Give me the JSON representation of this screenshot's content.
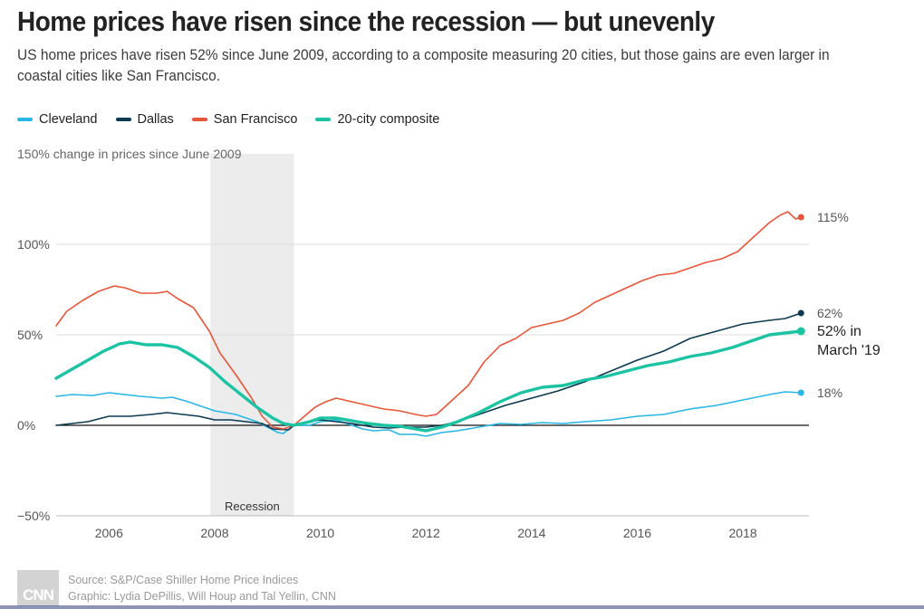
{
  "title": "Home prices have risen since the recession — but unevenly",
  "subtitle": "US home prices have risen 52% since June 2009, according to a composite measuring 20 cities, but those gains are even larger in coastal cities like San Francisco.",
  "legend": [
    {
      "label": "Cleveland",
      "color": "#28b6e6"
    },
    {
      "label": "Dallas",
      "color": "#0b3a52"
    },
    {
      "label": "San Francisco",
      "color": "#e8563a"
    },
    {
      "label": "20-city composite",
      "color": "#1cc3a3"
    }
  ],
  "footer": {
    "logo": "CNN",
    "source": "Source: S&P/Case Shiller Home Price Indices",
    "credit": "Graphic: Lydia DePillis, Will Houp and Tal Yellin, CNN"
  },
  "chart_data": {
    "type": "line",
    "ylabel": "150% change in prices since June 2009",
    "ylim": [
      -50,
      150
    ],
    "xlim": [
      2005.0,
      2019.25
    ],
    "yticks": [
      {
        "value": 100,
        "label": "100%"
      },
      {
        "value": 50,
        "label": "50%"
      },
      {
        "value": 0,
        "label": "0%"
      },
      {
        "value": -50,
        "label": "−50%"
      }
    ],
    "xticks": [
      {
        "value": 2006,
        "label": "2006"
      },
      {
        "value": 2008,
        "label": "2008"
      },
      {
        "value": 2010,
        "label": "2010"
      },
      {
        "value": 2012,
        "label": "2012"
      },
      {
        "value": 2014,
        "label": "2014"
      },
      {
        "value": 2016,
        "label": "2016"
      },
      {
        "value": 2018,
        "label": "2018"
      }
    ],
    "recession": {
      "start": 2007.92,
      "end": 2009.5,
      "label": "Recession"
    },
    "series": [
      {
        "name": "Cleveland",
        "color": "#28b6e6",
        "end_label": "18%",
        "width": 1.6,
        "points": [
          [
            2005.0,
            16
          ],
          [
            2005.3,
            17
          ],
          [
            2005.7,
            16.5
          ],
          [
            2006.0,
            18
          ],
          [
            2006.3,
            17
          ],
          [
            2006.6,
            16
          ],
          [
            2007.0,
            15
          ],
          [
            2007.2,
            15.5
          ],
          [
            2007.5,
            13
          ],
          [
            2007.8,
            10
          ],
          [
            2008.0,
            8
          ],
          [
            2008.2,
            7
          ],
          [
            2008.4,
            6
          ],
          [
            2008.6,
            4
          ],
          [
            2008.8,
            2
          ],
          [
            2009.0,
            -1
          ],
          [
            2009.2,
            -4
          ],
          [
            2009.3,
            -4.5
          ],
          [
            2009.5,
            0
          ],
          [
            2009.8,
            0
          ],
          [
            2010.0,
            2
          ],
          [
            2010.3,
            3
          ],
          [
            2010.5,
            1
          ],
          [
            2010.8,
            -2
          ],
          [
            2011.0,
            -3
          ],
          [
            2011.3,
            -2.5
          ],
          [
            2011.5,
            -5
          ],
          [
            2011.8,
            -5
          ],
          [
            2012.0,
            -6
          ],
          [
            2012.3,
            -4
          ],
          [
            2012.6,
            -3
          ],
          [
            2013.0,
            -1
          ],
          [
            2013.4,
            1
          ],
          [
            2013.8,
            0.5
          ],
          [
            2014.2,
            1.5
          ],
          [
            2014.6,
            1
          ],
          [
            2015.0,
            2
          ],
          [
            2015.5,
            3
          ],
          [
            2016.0,
            5
          ],
          [
            2016.5,
            6
          ],
          [
            2017.0,
            9
          ],
          [
            2017.5,
            11
          ],
          [
            2018.0,
            14
          ],
          [
            2018.5,
            17
          ],
          [
            2018.8,
            18.5
          ],
          [
            2019.1,
            18
          ]
        ]
      },
      {
        "name": "Dallas",
        "color": "#0b3a52",
        "end_label": "62%",
        "width": 1.6,
        "points": [
          [
            2005.0,
            0
          ],
          [
            2005.3,
            1
          ],
          [
            2005.6,
            2
          ],
          [
            2006.0,
            5
          ],
          [
            2006.4,
            5
          ],
          [
            2006.8,
            6
          ],
          [
            2007.1,
            7
          ],
          [
            2007.4,
            6
          ],
          [
            2007.7,
            5
          ],
          [
            2008.0,
            3
          ],
          [
            2008.3,
            3
          ],
          [
            2008.6,
            2
          ],
          [
            2008.9,
            1
          ],
          [
            2009.1,
            -2
          ],
          [
            2009.4,
            -2.5
          ],
          [
            2009.5,
            0
          ],
          [
            2009.8,
            2
          ],
          [
            2010.0,
            3
          ],
          [
            2010.3,
            2
          ],
          [
            2010.6,
            1
          ],
          [
            2011.0,
            -1
          ],
          [
            2011.3,
            -1.5
          ],
          [
            2011.6,
            -1
          ],
          [
            2012.0,
            -1
          ],
          [
            2012.3,
            0
          ],
          [
            2012.6,
            2
          ],
          [
            2013.0,
            6
          ],
          [
            2013.5,
            11
          ],
          [
            2014.0,
            15
          ],
          [
            2014.5,
            19
          ],
          [
            2015.0,
            24
          ],
          [
            2015.5,
            30
          ],
          [
            2016.0,
            36
          ],
          [
            2016.5,
            41
          ],
          [
            2017.0,
            48
          ],
          [
            2017.5,
            52
          ],
          [
            2018.0,
            56
          ],
          [
            2018.5,
            58
          ],
          [
            2018.8,
            59
          ],
          [
            2019.1,
            62
          ]
        ]
      },
      {
        "name": "San Francisco",
        "color": "#e8563a",
        "end_label": "115%",
        "width": 1.6,
        "points": [
          [
            2005.0,
            55
          ],
          [
            2005.2,
            63
          ],
          [
            2005.5,
            69
          ],
          [
            2005.8,
            74
          ],
          [
            2006.1,
            77
          ],
          [
            2006.3,
            76
          ],
          [
            2006.6,
            73
          ],
          [
            2006.9,
            73
          ],
          [
            2007.1,
            74
          ],
          [
            2007.3,
            70
          ],
          [
            2007.6,
            65
          ],
          [
            2007.9,
            52
          ],
          [
            2008.1,
            40
          ],
          [
            2008.4,
            28
          ],
          [
            2008.7,
            15
          ],
          [
            2008.9,
            5
          ],
          [
            2009.1,
            -1
          ],
          [
            2009.3,
            -2
          ],
          [
            2009.5,
            0
          ],
          [
            2009.7,
            5
          ],
          [
            2009.9,
            10
          ],
          [
            2010.1,
            13
          ],
          [
            2010.3,
            15
          ],
          [
            2010.6,
            13
          ],
          [
            2010.9,
            11
          ],
          [
            2011.2,
            9
          ],
          [
            2011.5,
            8
          ],
          [
            2011.8,
            6
          ],
          [
            2012.0,
            5
          ],
          [
            2012.2,
            6
          ],
          [
            2012.5,
            14
          ],
          [
            2012.8,
            22
          ],
          [
            2013.1,
            35
          ],
          [
            2013.4,
            44
          ],
          [
            2013.7,
            48
          ],
          [
            2014.0,
            54
          ],
          [
            2014.3,
            56
          ],
          [
            2014.6,
            58
          ],
          [
            2014.9,
            62
          ],
          [
            2015.2,
            68
          ],
          [
            2015.5,
            72
          ],
          [
            2015.8,
            76
          ],
          [
            2016.1,
            80
          ],
          [
            2016.4,
            83
          ],
          [
            2016.7,
            84
          ],
          [
            2017.0,
            87
          ],
          [
            2017.3,
            90
          ],
          [
            2017.6,
            92
          ],
          [
            2017.9,
            96
          ],
          [
            2018.2,
            104
          ],
          [
            2018.5,
            112
          ],
          [
            2018.7,
            116
          ],
          [
            2018.85,
            118
          ],
          [
            2019.0,
            114
          ],
          [
            2019.1,
            115
          ]
        ]
      },
      {
        "name": "20-city composite",
        "color": "#1cc3a3",
        "end_label": "52% in March '19",
        "width": 3.4,
        "points": [
          [
            2005.0,
            26
          ],
          [
            2005.3,
            31
          ],
          [
            2005.6,
            36
          ],
          [
            2005.9,
            41
          ],
          [
            2006.2,
            45
          ],
          [
            2006.4,
            46
          ],
          [
            2006.7,
            44.5
          ],
          [
            2007.0,
            44.5
          ],
          [
            2007.3,
            43
          ],
          [
            2007.6,
            38
          ],
          [
            2007.9,
            32
          ],
          [
            2008.2,
            24
          ],
          [
            2008.5,
            17
          ],
          [
            2008.8,
            10
          ],
          [
            2009.1,
            4
          ],
          [
            2009.3,
            1
          ],
          [
            2009.5,
            0
          ],
          [
            2009.8,
            2
          ],
          [
            2010.0,
            4
          ],
          [
            2010.3,
            4
          ],
          [
            2010.6,
            2.5
          ],
          [
            2010.9,
            1
          ],
          [
            2011.2,
            0
          ],
          [
            2011.5,
            -0.5
          ],
          [
            2011.8,
            -2
          ],
          [
            2012.0,
            -3
          ],
          [
            2012.3,
            -1
          ],
          [
            2012.6,
            2
          ],
          [
            2013.0,
            7
          ],
          [
            2013.4,
            13
          ],
          [
            2013.8,
            18
          ],
          [
            2014.2,
            21
          ],
          [
            2014.6,
            22
          ],
          [
            2015.0,
            25
          ],
          [
            2015.4,
            27
          ],
          [
            2015.8,
            30
          ],
          [
            2016.2,
            33
          ],
          [
            2016.6,
            35
          ],
          [
            2017.0,
            38
          ],
          [
            2017.4,
            40
          ],
          [
            2017.8,
            43
          ],
          [
            2018.2,
            47
          ],
          [
            2018.5,
            50
          ],
          [
            2018.8,
            51
          ],
          [
            2019.1,
            52
          ]
        ]
      }
    ]
  }
}
